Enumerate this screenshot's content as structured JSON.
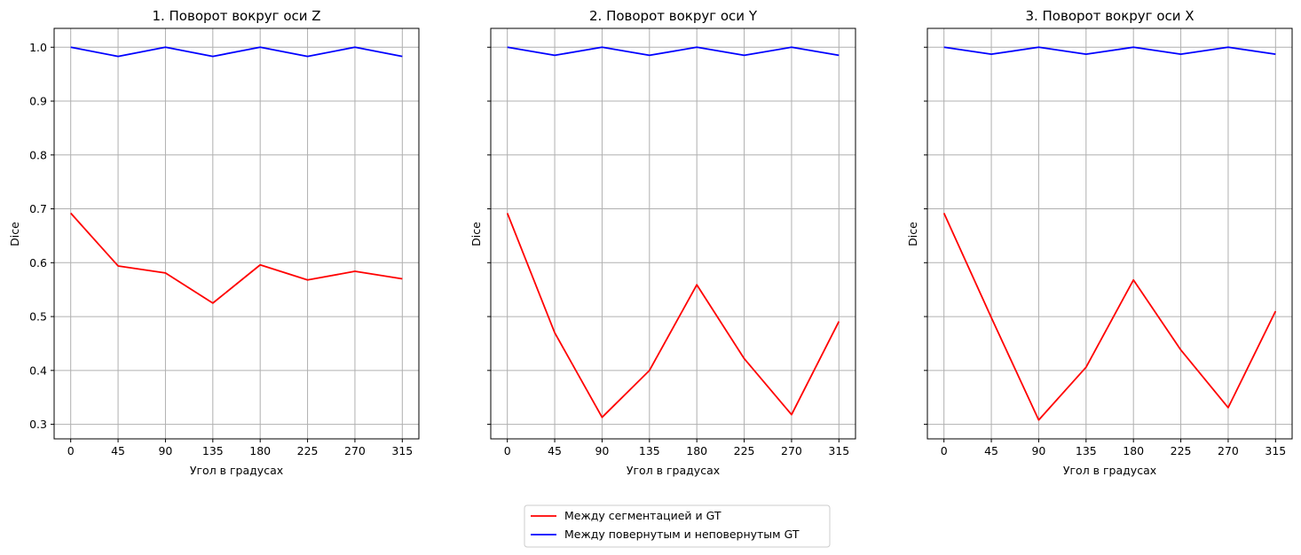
{
  "chart_data": [
    {
      "type": "line",
      "title": "1. Поворот вокруг оси Z",
      "xlabel": "Угол в градусах",
      "ylabel": "Dice",
      "x": [
        0,
        45,
        90,
        135,
        180,
        225,
        270,
        315
      ],
      "xticks": [
        "0",
        "45",
        "90",
        "135",
        "180",
        "225",
        "270",
        "315"
      ],
      "yticks": [
        "0.3",
        "0.4",
        "0.5",
        "0.6",
        "0.7",
        "0.8",
        "0.9",
        "1.0"
      ],
      "ylim": [
        0.273,
        1.035
      ],
      "grid": true,
      "series": [
        {
          "name": "Между сегментацией и GT",
          "color": "#ff0000",
          "values": [
            0.692,
            0.594,
            0.581,
            0.525,
            0.596,
            0.568,
            0.584,
            0.57
          ]
        },
        {
          "name": "Между повернутым и неповернутым GT",
          "color": "#0000ff",
          "values": [
            1.0,
            0.983,
            1.0,
            0.983,
            1.0,
            0.983,
            1.0,
            0.983
          ]
        }
      ]
    },
    {
      "type": "line",
      "title": "2. Поворот вокруг оси Y",
      "xlabel": "Угол в градусах",
      "ylabel": "Dice",
      "x": [
        0,
        45,
        90,
        135,
        180,
        225,
        270,
        315
      ],
      "xticks": [
        "0",
        "45",
        "90",
        "135",
        "180",
        "225",
        "270",
        "315"
      ],
      "yticks": [
        "0.3",
        "0.4",
        "0.5",
        "0.6",
        "0.7",
        "0.8",
        "0.9",
        "1.0"
      ],
      "ylim": [
        0.273,
        1.035
      ],
      "grid": true,
      "series": [
        {
          "name": "Между сегментацией и GT",
          "color": "#ff0000",
          "values": [
            0.692,
            0.47,
            0.313,
            0.4,
            0.559,
            0.422,
            0.318,
            0.491
          ]
        },
        {
          "name": "Между повернутым и неповернутым GT",
          "color": "#0000ff",
          "values": [
            1.0,
            0.985,
            1.0,
            0.985,
            1.0,
            0.985,
            1.0,
            0.985
          ]
        }
      ]
    },
    {
      "type": "line",
      "title": "3. Поворот вокруг оси X",
      "xlabel": "Угол в градусах",
      "ylabel": "Dice",
      "x": [
        0,
        45,
        90,
        135,
        180,
        225,
        270,
        315
      ],
      "xticks": [
        "0",
        "45",
        "90",
        "135",
        "180",
        "225",
        "270",
        "315"
      ],
      "yticks": [
        "0.3",
        "0.4",
        "0.5",
        "0.6",
        "0.7",
        "0.8",
        "0.9",
        "1.0"
      ],
      "ylim": [
        0.273,
        1.035
      ],
      "grid": true,
      "series": [
        {
          "name": "Между сегментацией и GT",
          "color": "#ff0000",
          "values": [
            0.692,
            0.498,
            0.308,
            0.406,
            0.568,
            0.438,
            0.331,
            0.51
          ]
        },
        {
          "name": "Между повернутым и неповернутым GT",
          "color": "#0000ff",
          "values": [
            1.0,
            0.987,
            1.0,
            0.987,
            1.0,
            0.987,
            1.0,
            0.987
          ]
        }
      ]
    }
  ],
  "legend": {
    "placement": "bottom-center",
    "entries": [
      {
        "label": "Между сегментацией и GT",
        "color": "#ff0000"
      },
      {
        "label": "Между повернутым и неповернутым GT",
        "color": "#0000ff"
      }
    ]
  }
}
